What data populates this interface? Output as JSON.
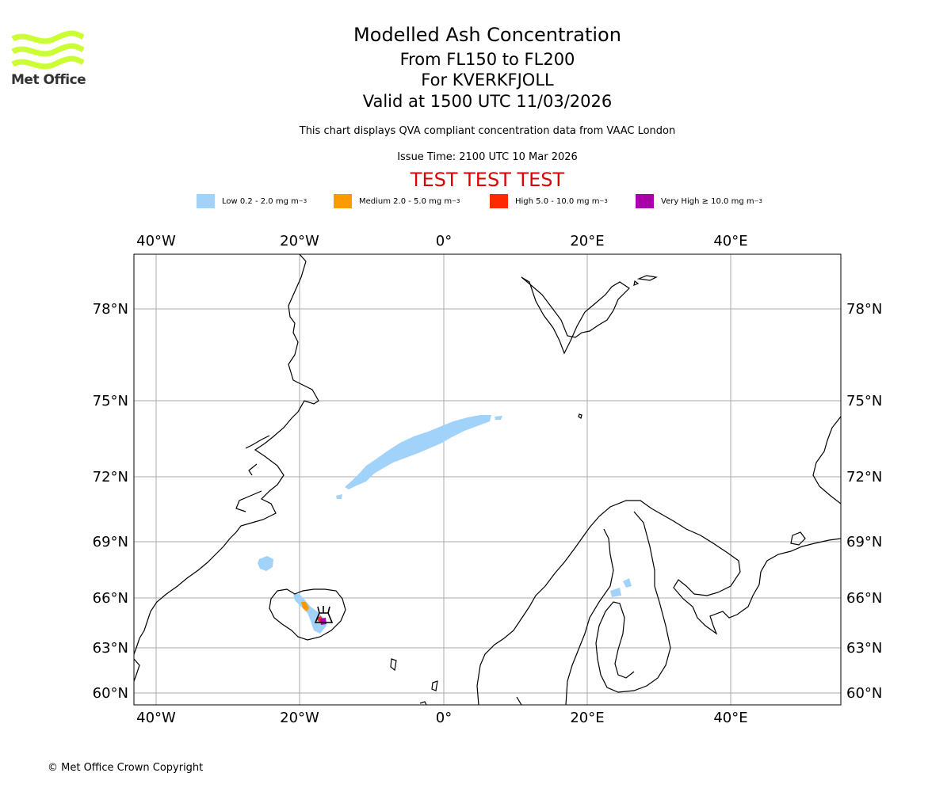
{
  "header": {
    "title": "Modelled Ash Concentration",
    "levels": "From FL150 to FL200",
    "volcano": "For KVERKFJOLL",
    "valid": "Valid at 1500 UTC 11/03/2026",
    "subtitle": "This chart displays QVA compliant concentration data from VAAC London",
    "issue_time": "Issue Time: 2100 UTC 10 Mar 2026",
    "test_banner": "TEST TEST TEST",
    "test_color": "#dd0000"
  },
  "logo": {
    "text": "Met Office",
    "icon": "met-office-wave-logo",
    "color": "#ccff33"
  },
  "legend": [
    {
      "label": "Low 0.2 - 2.0 mg m",
      "exp": "−3",
      "color": "#a0d2fa"
    },
    {
      "label": "Medium 2.0 - 5.0 mg m",
      "exp": "−3",
      "color": "#ff9900"
    },
    {
      "label": "High 5.0 - 10.0 mg m",
      "exp": "−3",
      "color": "#ff2a00"
    },
    {
      "label": "Very High  ≥  10.0 mg m",
      "exp": "−3",
      "color": "#aa00aa"
    }
  ],
  "map": {
    "lon_labels": [
      "40°W",
      "20°W",
      "0°",
      "20°E",
      "40°E"
    ],
    "lat_labels": [
      "78°N",
      "75°N",
      "72°N",
      "69°N",
      "66°N",
      "63°N",
      "60°N"
    ],
    "grid": true,
    "coast_color": "#000000",
    "grid_color": "#aaaaaa",
    "volcano_marker": "volcano-icon"
  },
  "footer": {
    "copyright": "© Met Office Crown Copyright"
  }
}
